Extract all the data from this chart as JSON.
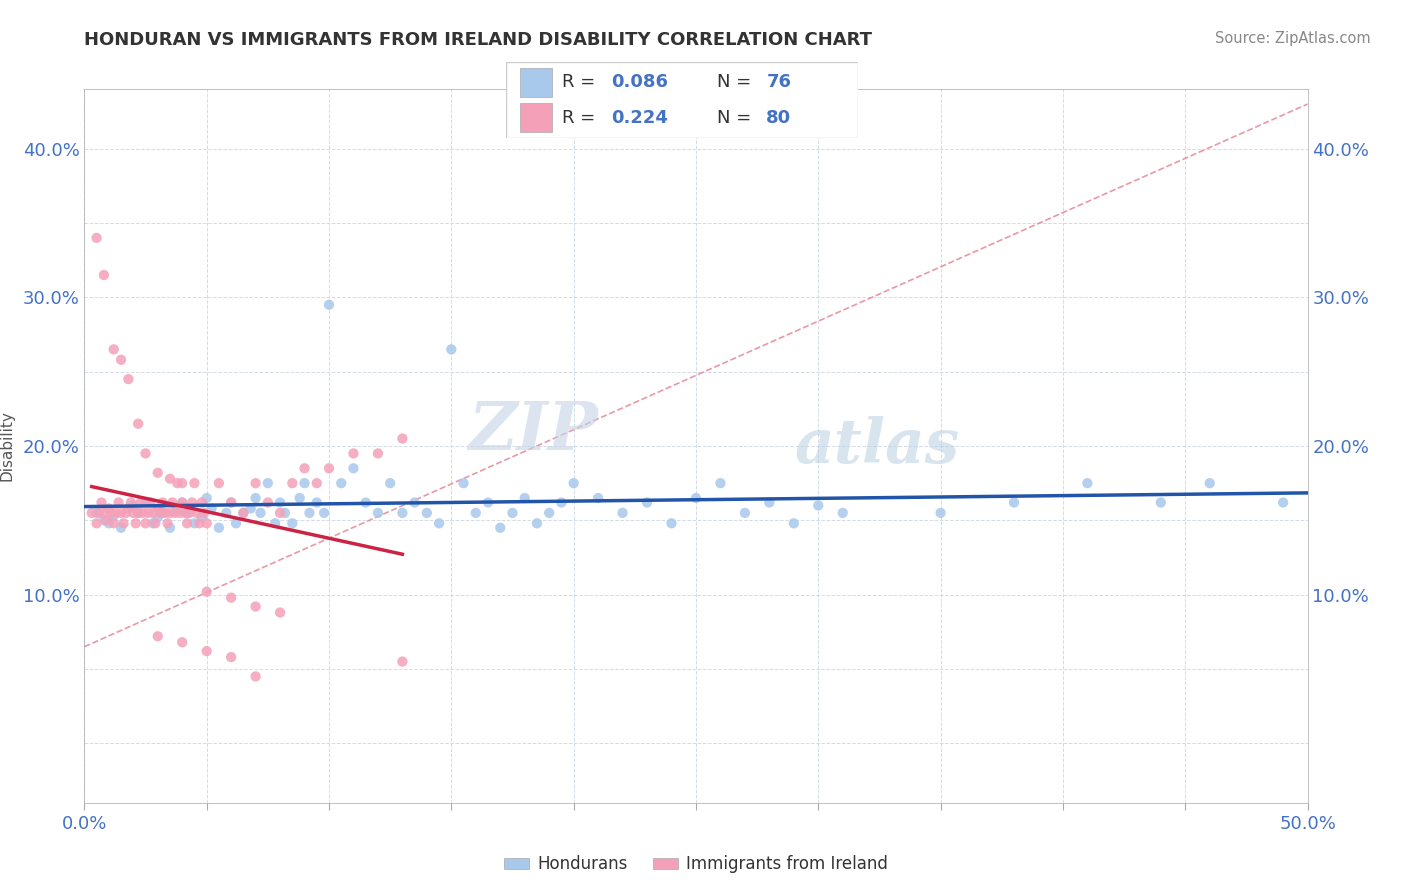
{
  "title": "HONDURAN VS IMMIGRANTS FROM IRELAND DISABILITY CORRELATION CHART",
  "source": "Source: ZipAtlas.com",
  "ylabel": "Disability",
  "xlim": [
    0.0,
    0.5
  ],
  "ylim": [
    -0.04,
    0.44
  ],
  "color_honduran": "#a8c8ec",
  "color_ireland": "#f4a0b8",
  "color_line_honduran": "#2255aa",
  "color_line_ireland": "#cc2244",
  "color_trend_dashed": "#e08090",
  "watermark_zip": "ZIP",
  "watermark_atlas": "atlas",
  "honduran_x": [
    0.005,
    0.008,
    0.01,
    0.012,
    0.015,
    0.018,
    0.02,
    0.022,
    0.025,
    0.028,
    0.03,
    0.032,
    0.035,
    0.038,
    0.04,
    0.042,
    0.045,
    0.048,
    0.05,
    0.052,
    0.055,
    0.058,
    0.06,
    0.062,
    0.065,
    0.068,
    0.07,
    0.072,
    0.075,
    0.078,
    0.08,
    0.082,
    0.085,
    0.088,
    0.09,
    0.092,
    0.095,
    0.098,
    0.1,
    0.105,
    0.11,
    0.115,
    0.12,
    0.125,
    0.13,
    0.135,
    0.14,
    0.145,
    0.15,
    0.155,
    0.16,
    0.165,
    0.17,
    0.175,
    0.18,
    0.185,
    0.19,
    0.195,
    0.2,
    0.21,
    0.22,
    0.23,
    0.24,
    0.25,
    0.26,
    0.27,
    0.28,
    0.29,
    0.3,
    0.31,
    0.35,
    0.38,
    0.41,
    0.44,
    0.46,
    0.49
  ],
  "honduran_y": [
    0.155,
    0.15,
    0.148,
    0.153,
    0.145,
    0.158,
    0.16,
    0.155,
    0.162,
    0.148,
    0.152,
    0.155,
    0.145,
    0.158,
    0.162,
    0.155,
    0.148,
    0.152,
    0.165,
    0.158,
    0.145,
    0.155,
    0.162,
    0.148,
    0.155,
    0.158,
    0.165,
    0.155,
    0.175,
    0.148,
    0.162,
    0.155,
    0.148,
    0.165,
    0.175,
    0.155,
    0.162,
    0.155,
    0.295,
    0.175,
    0.185,
    0.162,
    0.155,
    0.175,
    0.155,
    0.162,
    0.155,
    0.148,
    0.265,
    0.175,
    0.155,
    0.162,
    0.145,
    0.155,
    0.165,
    0.148,
    0.155,
    0.162,
    0.175,
    0.165,
    0.155,
    0.162,
    0.148,
    0.165,
    0.175,
    0.155,
    0.162,
    0.148,
    0.16,
    0.155,
    0.155,
    0.162,
    0.175,
    0.162,
    0.175,
    0.162
  ],
  "ireland_x": [
    0.003,
    0.005,
    0.006,
    0.007,
    0.008,
    0.009,
    0.01,
    0.011,
    0.012,
    0.013,
    0.014,
    0.015,
    0.016,
    0.017,
    0.018,
    0.019,
    0.02,
    0.021,
    0.022,
    0.023,
    0.024,
    0.025,
    0.026,
    0.027,
    0.028,
    0.029,
    0.03,
    0.031,
    0.032,
    0.033,
    0.034,
    0.035,
    0.036,
    0.037,
    0.038,
    0.039,
    0.04,
    0.041,
    0.042,
    0.043,
    0.044,
    0.045,
    0.046,
    0.047,
    0.048,
    0.049,
    0.05,
    0.055,
    0.06,
    0.065,
    0.07,
    0.075,
    0.08,
    0.085,
    0.09,
    0.095,
    0.1,
    0.11,
    0.12,
    0.13,
    0.005,
    0.008,
    0.012,
    0.015,
    0.018,
    0.022,
    0.025,
    0.03,
    0.035,
    0.04,
    0.05,
    0.06,
    0.07,
    0.08,
    0.03,
    0.04,
    0.05,
    0.06,
    0.07,
    0.13
  ],
  "ireland_y": [
    0.155,
    0.148,
    0.155,
    0.162,
    0.155,
    0.15,
    0.158,
    0.155,
    0.148,
    0.155,
    0.162,
    0.155,
    0.148,
    0.155,
    0.158,
    0.162,
    0.155,
    0.148,
    0.155,
    0.162,
    0.155,
    0.148,
    0.155,
    0.162,
    0.155,
    0.148,
    0.158,
    0.155,
    0.162,
    0.155,
    0.148,
    0.155,
    0.162,
    0.155,
    0.175,
    0.155,
    0.162,
    0.155,
    0.148,
    0.155,
    0.162,
    0.175,
    0.155,
    0.148,
    0.162,
    0.155,
    0.148,
    0.175,
    0.162,
    0.155,
    0.175,
    0.162,
    0.155,
    0.175,
    0.185,
    0.175,
    0.185,
    0.195,
    0.195,
    0.205,
    0.34,
    0.315,
    0.265,
    0.258,
    0.245,
    0.215,
    0.195,
    0.182,
    0.178,
    0.175,
    0.102,
    0.098,
    0.092,
    0.088,
    0.072,
    0.068,
    0.062,
    0.058,
    0.045,
    0.055
  ],
  "legend_r1": "0.086",
  "legend_n1": "76",
  "legend_r2": "0.224",
  "legend_n2": "80"
}
